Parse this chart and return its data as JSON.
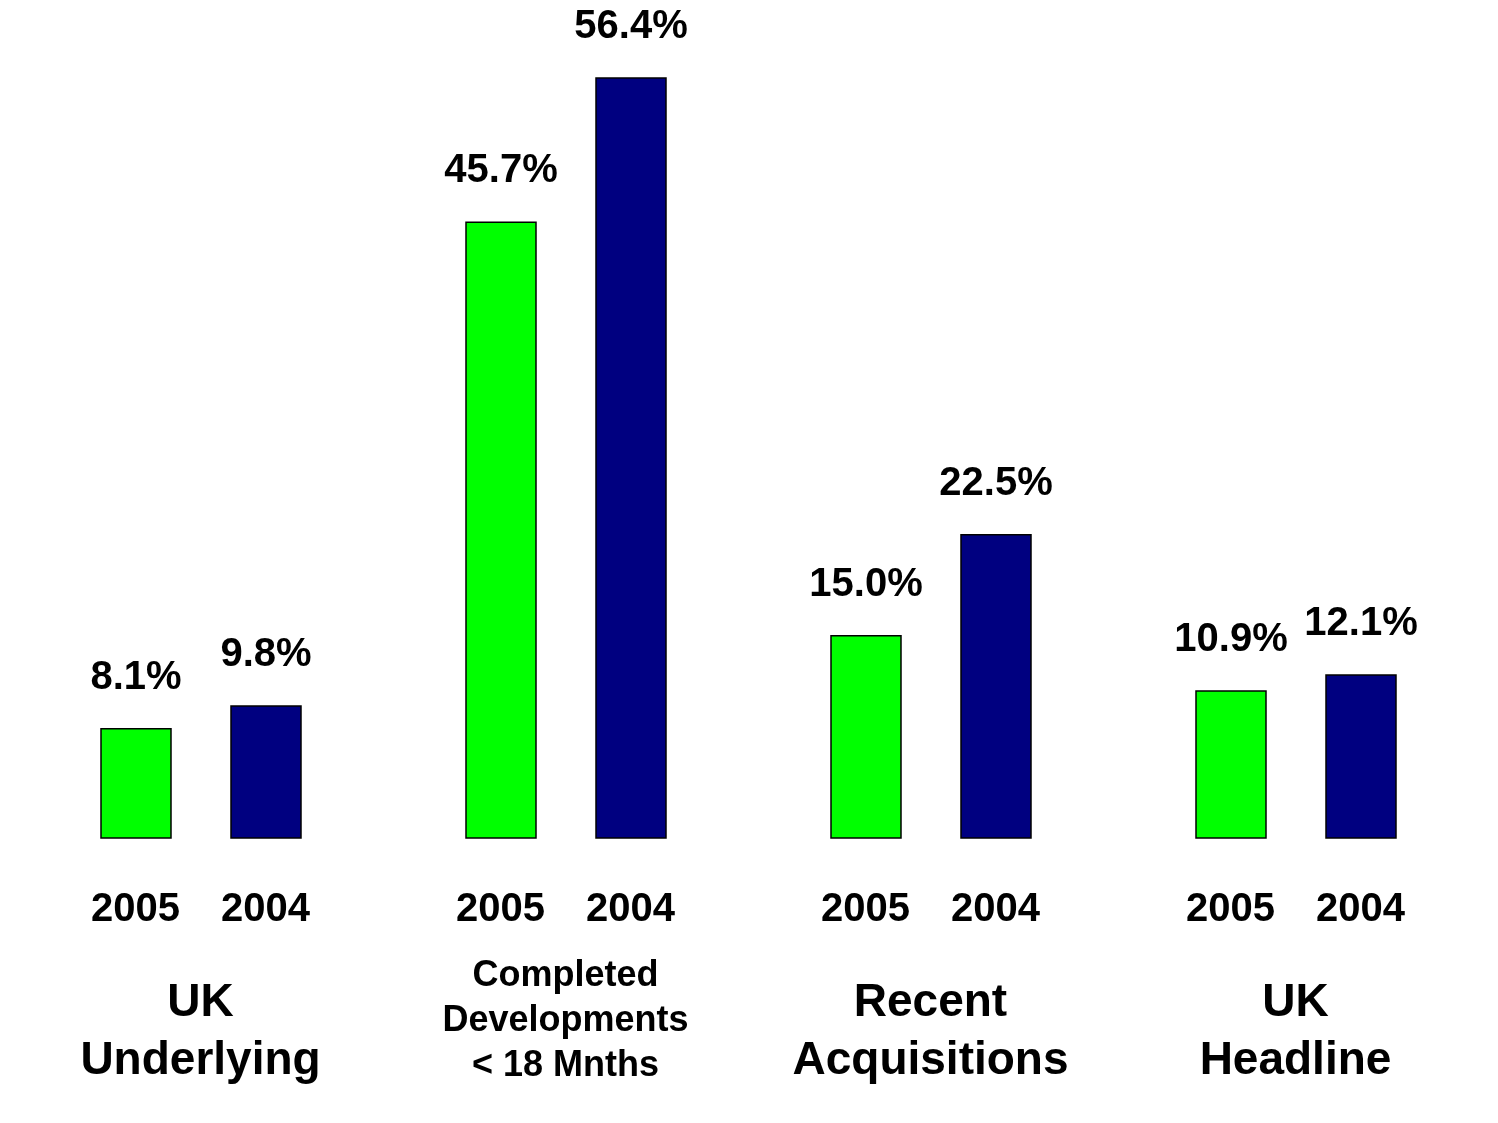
{
  "chart_data": {
    "type": "bar",
    "categories": [
      "UK Underlying",
      "Completed Developments < 18 Mnths",
      "Recent Acquisitions",
      "UK Headline"
    ],
    "series": [
      {
        "name": "2005",
        "color": "#00ff00",
        "values": [
          8.1,
          45.7,
          15.0,
          10.9
        ],
        "value_labels": [
          "8.1%",
          "45.7%",
          "15.0%",
          "10.9%"
        ]
      },
      {
        "name": "2004",
        "color": "#000080",
        "values": [
          9.8,
          56.4,
          22.5,
          12.1
        ],
        "value_labels": [
          "9.8%",
          "56.4%",
          "22.5%",
          "12.1%"
        ]
      }
    ]
  }
}
